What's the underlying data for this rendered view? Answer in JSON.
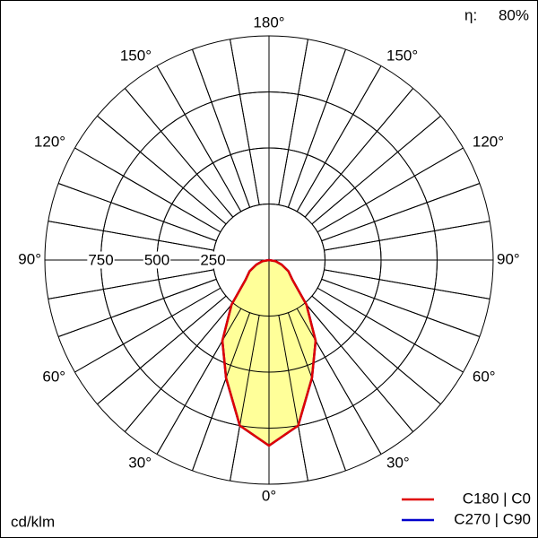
{
  "chart_data": {
    "type": "polar",
    "unit": "cd/klm",
    "efficiency_symbol": "η:",
    "efficiency": {
      "value": 80,
      "label": "80%"
    },
    "rlim": [
      0,
      1000
    ],
    "rticks": [
      250,
      500,
      750
    ],
    "angle_ticks": [
      {
        "value": 0,
        "label": "0°"
      },
      {
        "value": -30,
        "label": "30°"
      },
      {
        "value": 30,
        "label": "30°"
      },
      {
        "value": -60,
        "label": "60°"
      },
      {
        "value": 60,
        "label": "60°"
      },
      {
        "value": -90,
        "label": "90°"
      },
      {
        "value": 90,
        "label": "90°"
      },
      {
        "value": -120,
        "label": "120°"
      },
      {
        "value": 120,
        "label": "120°"
      },
      {
        "value": -150,
        "label": "150°"
      },
      {
        "value": 150,
        "label": "150°"
      },
      {
        "value": 180,
        "label": "180°"
      }
    ],
    "x": [
      -90,
      -80,
      -70,
      -60,
      -50,
      -40,
      -30,
      -20,
      -10,
      0,
      10,
      20,
      30,
      40,
      50,
      60,
      70,
      80,
      90
    ],
    "series": [
      {
        "name": "C270 | C90",
        "color": "#0000cc",
        "values": [
          0,
          30,
          60,
          100,
          136,
          260,
          416,
          560,
          750,
          828,
          750,
          560,
          416,
          260,
          136,
          100,
          60,
          30,
          0
        ]
      },
      {
        "name": "C180 | C0",
        "color": "#e00000",
        "fill": "#ffff99",
        "values": [
          0,
          30,
          60,
          100,
          136,
          260,
          416,
          560,
          750,
          828,
          750,
          560,
          416,
          260,
          136,
          100,
          60,
          30,
          0
        ]
      }
    ]
  }
}
